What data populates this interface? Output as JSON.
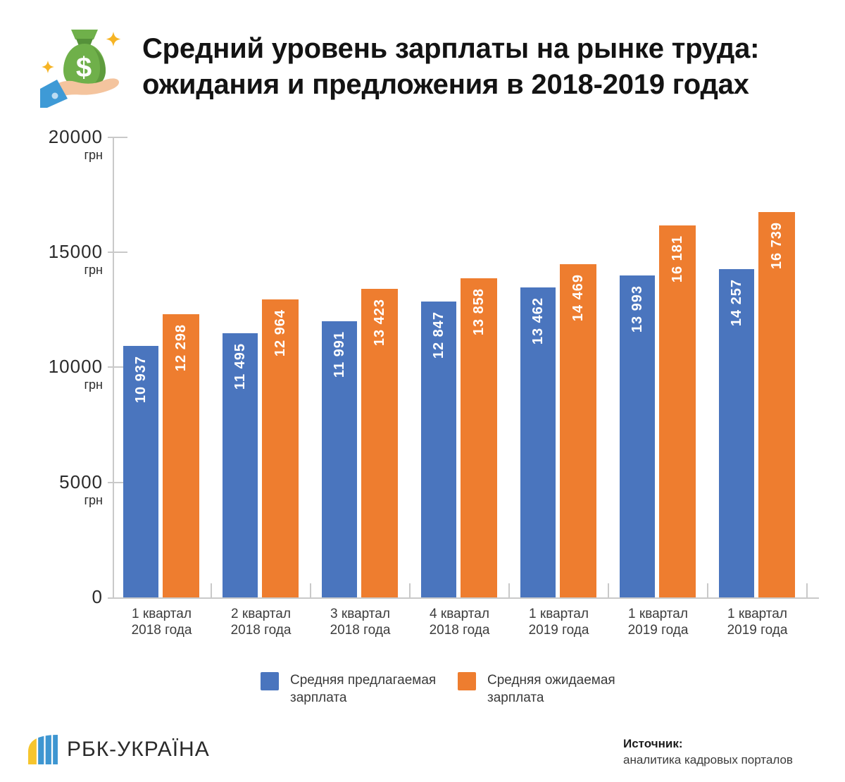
{
  "header": {
    "title": "Средний уровень зарплаты на рынке труда:\nожидания и предложения в 2018-2019 годах"
  },
  "chart_data": {
    "type": "bar",
    "title": "Средний уровень зарплаты на рынке труда: ожидания и предложения в 2018-2019 годах",
    "y_unit": "грн",
    "y_ticks": [
      0,
      5000,
      10000,
      15000,
      20000
    ],
    "ylim": [
      0,
      20000
    ],
    "grid": false,
    "legend_position": "bottom",
    "value_labels": "inside-bar, rotated 90°, white, thousands separated by space",
    "categories": [
      "1 квартал\n2018 года",
      "2 квартал\n2018 года",
      "3 квартал\n2018 года",
      "4 квартал\n2018 года",
      "1 квартал\n2019 года",
      "1 квартал\n2019 года",
      "1 квартал\n2019 года"
    ],
    "series": [
      {
        "name": "Средняя предлагаемая зарплата",
        "color": "#4a75be",
        "values": [
          10937,
          11495,
          11991,
          12847,
          13462,
          13993,
          14257
        ]
      },
      {
        "name": "Средняя ожидаемая зарплата",
        "color": "#ee7d2f",
        "values": [
          12298,
          12964,
          13423,
          13858,
          14469,
          16181,
          16739
        ]
      }
    ]
  },
  "footer": {
    "logo_text": "РБК-УКРАЇНА",
    "source_label": "Источник:",
    "source_text": "аналитика кадровых порталов"
  }
}
